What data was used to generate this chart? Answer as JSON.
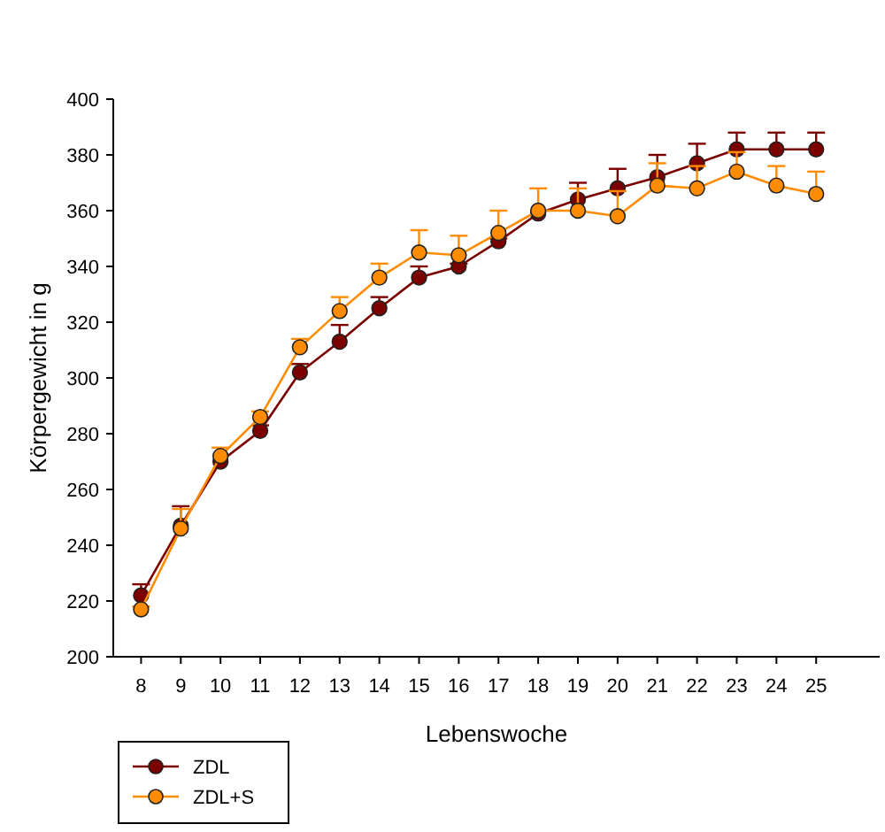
{
  "chart_data": {
    "type": "line",
    "xlabel": "Lebenswoche",
    "ylabel": "Körpergewicht in g",
    "x": [
      8,
      9,
      10,
      11,
      12,
      13,
      14,
      15,
      16,
      17,
      18,
      19,
      20,
      21,
      22,
      23,
      24,
      25
    ],
    "xlim": [
      7.3,
      26.6
    ],
    "xticks": [
      8,
      9,
      10,
      11,
      12,
      13,
      14,
      15,
      16,
      17,
      18,
      19,
      20,
      21,
      22,
      23,
      24,
      25
    ],
    "ylim": [
      200,
      400
    ],
    "yticks": [
      200,
      220,
      240,
      260,
      280,
      300,
      320,
      340,
      360,
      380,
      400
    ],
    "series": [
      {
        "name": "ZDL",
        "color": "#7b0000",
        "values": [
          222,
          247,
          270,
          281,
          302,
          313,
          325,
          336,
          340,
          349,
          359,
          364,
          368,
          372,
          377,
          382,
          382,
          382
        ],
        "errors": [
          [
            222,
            226
          ],
          [
            247,
            254
          ],
          null,
          [
            281,
            283
          ],
          [
            302,
            305
          ],
          [
            313,
            319
          ],
          [
            325,
            329
          ],
          [
            336,
            340
          ],
          [
            340,
            341
          ],
          [
            349,
            350
          ],
          null,
          [
            364,
            370
          ],
          [
            368,
            375
          ],
          [
            372,
            380
          ],
          [
            377,
            384
          ],
          [
            382,
            388
          ],
          [
            382,
            388
          ],
          [
            382,
            388
          ]
        ]
      },
      {
        "name": "ZDL+S",
        "color": "#ff8c00",
        "values": [
          217,
          246,
          272,
          286,
          311,
          324,
          336,
          345,
          344,
          352,
          360,
          360,
          358,
          369,
          368,
          374,
          369,
          366
        ],
        "errors": [
          [
            217,
            218
          ],
          [
            246,
            253
          ],
          [
            272,
            275
          ],
          [
            286,
            288
          ],
          [
            311,
            314
          ],
          [
            324,
            329
          ],
          [
            336,
            341
          ],
          [
            345,
            353
          ],
          [
            344,
            351
          ],
          [
            352,
            360
          ],
          [
            360,
            368
          ],
          [
            360,
            368
          ],
          [
            358,
            367
          ],
          [
            369,
            377
          ],
          [
            368,
            376
          ],
          [
            374,
            381
          ],
          [
            369,
            376
          ],
          [
            366,
            374
          ]
        ]
      }
    ],
    "marker": "circle",
    "line_style": "solid",
    "legend": "bottom left",
    "grid": false
  }
}
